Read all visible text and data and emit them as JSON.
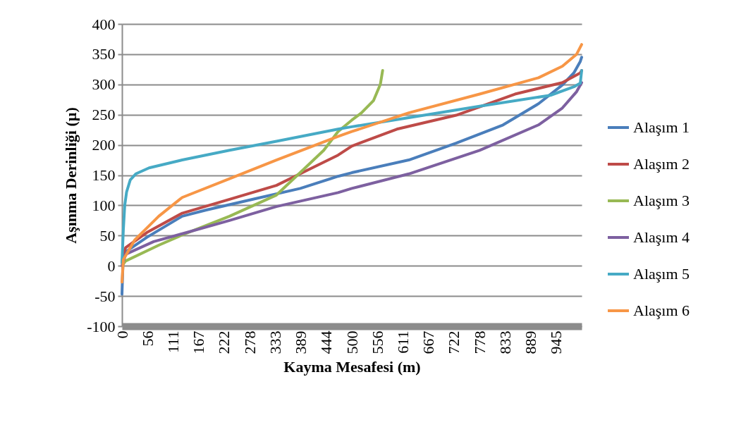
{
  "chart_data": {
    "type": "line",
    "xlabel": "Kayma Mesafesi (m)",
    "ylabel": "Aşınma Derinliği (µ)",
    "xlim": [
      0,
      1000
    ],
    "ylim": [
      -100,
      400
    ],
    "xticks": [
      0,
      {
        "value": 55.56,
        "label": "56"
      },
      {
        "value": 111.11,
        "label": "111"
      },
      {
        "value": 166.67,
        "label": "167"
      },
      {
        "value": 222.22,
        "label": "222"
      },
      {
        "value": 277.78,
        "label": "278"
      },
      {
        "value": 333.33,
        "label": "333"
      },
      {
        "value": 388.89,
        "label": "389"
      },
      {
        "value": 444.44,
        "label": "444"
      },
      500,
      {
        "value": 555.56,
        "label": "556"
      },
      {
        "value": 611.11,
        "label": "611"
      },
      {
        "value": 666.67,
        "label": "667"
      },
      {
        "value": 722.22,
        "label": "722"
      },
      {
        "value": 777.78,
        "label": "778"
      },
      {
        "value": 833.33,
        "label": "833"
      },
      {
        "value": 888.89,
        "label": "889"
      },
      {
        "value": 944.6,
        "label": "945"
      }
    ],
    "yticks": [
      -100,
      -50,
      0,
      50,
      100,
      150,
      200,
      250,
      300,
      350,
      400
    ],
    "grid": "y",
    "legend": "right",
    "series": [
      {
        "name": "Alaşım 1",
        "color": "#4a7ebb",
        "x": [
          0,
          2,
          8,
          54,
          131,
          182,
          285,
          388,
          470,
          500,
          624,
          727,
          829,
          906,
          958,
          983,
          997,
          1000
        ],
        "values": [
          -47,
          0,
          23,
          47,
          82,
          92,
          110,
          128,
          148,
          154,
          175,
          203,
          233,
          268,
          299,
          319,
          338,
          345
        ]
      },
      {
        "name": "Alaşım 2",
        "color": "#be4b48",
        "x": [
          0,
          3,
          8,
          54,
          131,
          234,
          336,
          470,
          500,
          598,
          727,
          855,
          958,
          997,
          1000
        ],
        "values": [
          5,
          20,
          30,
          55,
          87,
          110,
          133,
          183,
          198,
          226,
          249,
          284,
          303,
          319,
          323
        ]
      },
      {
        "name": "Alaşım 3",
        "color": "#98b954",
        "x": [
          0,
          8,
          80,
          131,
          234,
          336,
          439,
          470,
          500,
          521,
          547,
          562,
          567
        ],
        "values": [
          0,
          8,
          34,
          51,
          82,
          117,
          191,
          222,
          241,
          253,
          273,
          300,
          323
        ]
      },
      {
        "name": "Alaşım 4",
        "color": "#7d60a0",
        "x": [
          0,
          8,
          69,
          131,
          234,
          336,
          470,
          500,
          624,
          778,
          906,
          958,
          989,
          1000
        ],
        "values": [
          0,
          19,
          40,
          53,
          75,
          98,
          121,
          128,
          152,
          191,
          233,
          261,
          288,
          303
        ]
      },
      {
        "name": "Alaşım 5",
        "color": "#46aac5",
        "x": [
          0,
          3,
          6,
          10,
          18,
          30,
          59,
          131,
          234,
          336,
          470,
          500,
          624,
          778,
          932,
          983,
          997,
          1000
        ],
        "values": [
          5,
          60,
          100,
          122,
          142,
          152,
          162,
          175,
          191,
          206,
          226,
          230,
          245,
          264,
          282,
          296,
          302,
          323
        ]
      },
      {
        "name": "Alaşım 6",
        "color": "#f79646",
        "x": [
          0,
          3,
          28,
          80,
          131,
          234,
          336,
          470,
          500,
          624,
          778,
          906,
          958,
          989,
          1000
        ],
        "values": [
          -27,
          10,
          43,
          82,
          113,
          144,
          175,
          214,
          222,
          253,
          284,
          311,
          330,
          350,
          366
        ]
      }
    ]
  }
}
